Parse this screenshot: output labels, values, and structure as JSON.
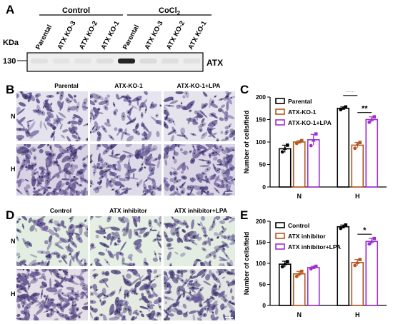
{
  "panels": {
    "A": "A",
    "B": "B",
    "C": "C",
    "D": "D",
    "E": "E"
  },
  "blot": {
    "group_control": "Control",
    "group_cocl2": "CoCl",
    "group_cocl2_sub": "2",
    "lanes": [
      "Parental",
      "ATX KO-3",
      "ATX KO-2",
      "ATX KO-1",
      "Parental",
      "ATX KO-3",
      "ATX KO-2",
      "ATX KO-1"
    ],
    "kda_label": "KDa",
    "marker": "130",
    "protein": "ATX",
    "band_intensity": [
      0.05,
      0.04,
      0.04,
      0.06,
      0.95,
      0.08,
      0.06,
      0.05
    ]
  },
  "micro_B": {
    "columns": [
      "Parental",
      "ATX-KO-1",
      "ATX-KO-1+LPA"
    ],
    "rows": [
      "N",
      "H"
    ]
  },
  "micro_D": {
    "columns": [
      "Control",
      "ATX inhibitor",
      "ATX inhibitor+LPA"
    ],
    "rows": [
      "N",
      "H"
    ]
  },
  "colors": {
    "black": "#000000",
    "orange": "#b5561f",
    "purple": "#9b2fd1"
  },
  "chart_data": [
    {
      "type": "bar",
      "panel": "C",
      "categories": [
        "N",
        "H"
      ],
      "ylabel": "Number of cells/field",
      "ylim": [
        0,
        200
      ],
      "yticks": [
        0,
        50,
        100,
        150,
        200
      ],
      "legend": "top-right",
      "series": [
        {
          "name": "Parental",
          "color": "#000000",
          "values": [
            85,
            175
          ],
          "errors": [
            8,
            3
          ],
          "points": [
            [
              78,
              86,
              93
            ],
            [
              172,
              175,
              178
            ]
          ]
        },
        {
          "name": "ATX-KO-1",
          "color": "#b5561f",
          "values": [
            100,
            93
          ],
          "errors": [
            3,
            6
          ],
          "points": [
            [
              97,
              100,
              103
            ],
            [
              86,
              95,
              99
            ]
          ]
        },
        {
          "name": "ATX-KO-1+LPA",
          "color": "#9b2fd1",
          "values": [
            105,
            150
          ],
          "errors": [
            12,
            6
          ],
          "points": [
            [
              92,
              104,
              118
            ],
            [
              144,
              150,
              156
            ]
          ]
        }
      ],
      "significance": [
        {
          "label": "***",
          "pair": [
            0,
            1
          ],
          "category": 1
        },
        {
          "label": "**",
          "pair": [
            1,
            2
          ],
          "category": 1
        }
      ]
    },
    {
      "type": "bar",
      "panel": "E",
      "categories": [
        "N",
        "H"
      ],
      "ylabel": "Number of cells/field",
      "ylim": [
        0,
        200
      ],
      "yticks": [
        0,
        50,
        100,
        150,
        200
      ],
      "legend": "top-right",
      "series": [
        {
          "name": "Control",
          "color": "#000000",
          "values": [
            98,
            187
          ],
          "errors": [
            7,
            4
          ],
          "points": [
            [
              92,
              99,
              104
            ],
            [
              183,
              187,
              191
            ]
          ]
        },
        {
          "name": "ATX inhibitor",
          "color": "#b5561f",
          "values": [
            75,
            102
          ],
          "errors": [
            6,
            7
          ],
          "points": [
            [
              69,
              75,
              81
            ],
            [
              95,
              102,
              109
            ]
          ]
        },
        {
          "name": "ATX inhibitor+LPA",
          "color": "#9b2fd1",
          "values": [
            90,
            152
          ],
          "errors": [
            3,
            7
          ],
          "points": [
            [
              87,
              90,
              93
            ],
            [
              146,
              152,
              159
            ]
          ]
        }
      ],
      "significance": [
        {
          "label": "***",
          "pair": [
            0,
            1
          ],
          "category": 1
        },
        {
          "label": "*",
          "pair": [
            1,
            2
          ],
          "category": 1
        }
      ]
    }
  ]
}
